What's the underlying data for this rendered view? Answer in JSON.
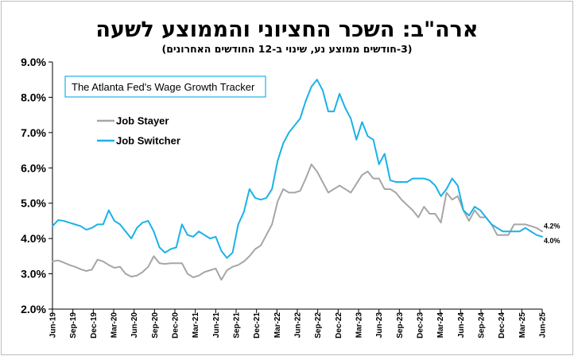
{
  "chart_data": {
    "type": "line",
    "title": "ארה\"ב: השכר החציוני והממוצע לשעה",
    "subtitle": "(3-חודשים ממוצע נע, שינוי ב-12 החודשים האחרונים)",
    "annotation": "The Atlanta Fed's Wage Growth Tracker",
    "ylim": [
      2.0,
      9.0
    ],
    "yticks": [
      "2.0%",
      "3.0%",
      "4.0%",
      "5.0%",
      "6.0%",
      "7.0%",
      "8.0%",
      "9.0%"
    ],
    "x_start": "Jun-19",
    "x_end": "Jun-25",
    "xticks": [
      "Jun-19",
      "Sep-19",
      "Dec-19",
      "Mar-20",
      "Jun-20",
      "Sep-20",
      "Dec-20",
      "Mar-21",
      "Jun-21",
      "Sep-21",
      "Dec-21",
      "Mar-22",
      "Jun-22",
      "Sep-22",
      "Dec-22",
      "Mar-23",
      "Jun-23",
      "Sep-23",
      "Dec-23",
      "Mar-24",
      "Jun-24",
      "Sep-24",
      "Dec-24",
      "Mar-25",
      "Jun-25"
    ],
    "legend_position": "top-left",
    "grid": false,
    "series": [
      {
        "name": "Job Stayer",
        "color": "#a6a6a6",
        "end_label": "4.2%",
        "values": [
          3.35,
          3.38,
          3.32,
          3.25,
          3.2,
          3.13,
          3.08,
          3.12,
          3.4,
          3.35,
          3.25,
          3.17,
          3.2,
          3.0,
          2.92,
          2.95,
          3.05,
          3.2,
          3.5,
          3.3,
          3.28,
          3.3,
          3.3,
          3.3,
          3.0,
          2.9,
          2.95,
          3.05,
          3.1,
          3.15,
          2.83,
          3.1,
          3.2,
          3.25,
          3.35,
          3.5,
          3.7,
          3.8,
          4.1,
          4.4,
          5.05,
          5.4,
          5.3,
          5.3,
          5.35,
          5.7,
          6.1,
          5.9,
          5.6,
          5.3,
          5.4,
          5.5,
          5.4,
          5.3,
          5.55,
          5.8,
          5.9,
          5.7,
          5.7,
          5.4,
          5.4,
          5.3,
          5.1,
          4.95,
          4.8,
          4.6,
          4.9,
          4.7,
          4.7,
          4.45,
          5.3,
          5.1,
          5.2,
          4.8,
          4.5,
          4.8,
          4.6,
          4.6,
          4.4,
          4.1,
          4.1,
          4.1,
          4.4,
          4.4,
          4.4,
          4.35,
          4.3,
          4.2
        ]
      },
      {
        "name": "Job Switcher",
        "color": "#1ab2e8",
        "end_label": "4.0%",
        "values": [
          4.35,
          4.52,
          4.5,
          4.45,
          4.4,
          4.35,
          4.25,
          4.3,
          4.4,
          4.4,
          4.8,
          4.5,
          4.4,
          4.2,
          4.0,
          4.3,
          4.45,
          4.5,
          4.2,
          3.75,
          3.6,
          3.7,
          3.75,
          4.4,
          4.1,
          4.05,
          4.2,
          4.1,
          4.0,
          4.05,
          3.65,
          3.45,
          3.6,
          4.4,
          4.75,
          5.4,
          5.15,
          5.1,
          5.15,
          5.4,
          6.2,
          6.7,
          7.0,
          7.2,
          7.4,
          7.9,
          8.3,
          8.5,
          8.2,
          7.6,
          7.6,
          8.1,
          7.7,
          7.4,
          6.8,
          7.3,
          6.9,
          6.8,
          6.1,
          6.4,
          5.65,
          5.6,
          5.6,
          5.6,
          5.7,
          5.7,
          5.7,
          5.65,
          5.5,
          5.2,
          5.4,
          5.7,
          5.5,
          4.8,
          4.65,
          4.9,
          4.8,
          4.6,
          4.4,
          4.3,
          4.2,
          4.2,
          4.2,
          4.2,
          4.3,
          4.2,
          4.1,
          4.05
        ]
      }
    ]
  }
}
